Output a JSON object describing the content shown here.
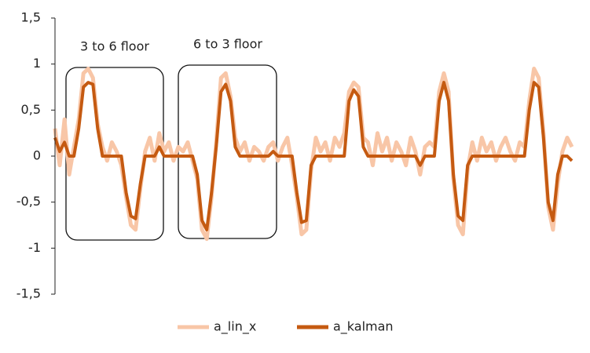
{
  "chart_data": {
    "type": "line",
    "annotations": [
      "3 to 6 floor",
      "6 to 3 floor"
    ],
    "ylim": [
      -1.5,
      1.5
    ],
    "yticks": [
      {
        "value": -1.5,
        "label": "-1,5"
      },
      -1,
      {
        "value": -0.5,
        "label": "-0,5"
      },
      0,
      {
        "value": 0.5,
        "label": "0,5"
      },
      1,
      {
        "value": 1.5,
        "label": "1,5"
      }
    ],
    "legend": "bottom",
    "series": [
      {
        "name": "a_lin_x",
        "color": "#f8c6a7",
        "values": [
          0.3,
          -0.1,
          0.4,
          -0.2,
          0.1,
          0.4,
          0.9,
          0.95,
          0.85,
          0.35,
          0.1,
          -0.05,
          0.15,
          0.05,
          -0.1,
          -0.45,
          -0.75,
          -0.8,
          -0.35,
          0.05,
          0.2,
          -0.05,
          0.25,
          0.05,
          0.15,
          -0.05,
          0.1,
          0.05,
          0.15,
          -0.05,
          -0.25,
          -0.8,
          -0.9,
          -0.45,
          0.15,
          0.85,
          0.9,
          0.65,
          0.2,
          0.05,
          0.15,
          -0.05,
          0.1,
          0.05,
          -0.05,
          0.1,
          0.15,
          -0.05,
          0.1,
          0.2,
          -0.1,
          -0.45,
          -0.85,
          -0.8,
          -0.15,
          0.2,
          0.05,
          0.15,
          -0.05,
          0.2,
          0.1,
          0.25,
          0.7,
          0.8,
          0.75,
          0.2,
          0.15,
          -0.1,
          0.25,
          0.05,
          0.2,
          -0.05,
          0.15,
          0.05,
          -0.1,
          0.2,
          0.05,
          -0.2,
          0.1,
          0.15,
          0.1,
          0.7,
          0.9,
          0.7,
          -0.25,
          -0.75,
          -0.85,
          -0.15,
          0.15,
          -0.05,
          0.2,
          0.05,
          0.15,
          -0.05,
          0.1,
          0.2,
          0.05,
          -0.05,
          0.15,
          0.1,
          0.6,
          0.95,
          0.85,
          0.25,
          -0.55,
          -0.8,
          -0.3,
          0.05,
          0.2,
          0.1
        ]
      },
      {
        "name": "a_kalman",
        "color": "#c55a11",
        "values": [
          0.2,
          0.05,
          0.15,
          0,
          0,
          0.3,
          0.75,
          0.8,
          0.78,
          0.3,
          0,
          0,
          0,
          0,
          0,
          -0.4,
          -0.65,
          -0.68,
          -0.3,
          0,
          0,
          0,
          0.1,
          0,
          0,
          0,
          0,
          0,
          0,
          0,
          -0.2,
          -0.7,
          -0.8,
          -0.4,
          0.1,
          0.7,
          0.78,
          0.6,
          0.1,
          0,
          0,
          0,
          0,
          0,
          0,
          0,
          0.05,
          0,
          0,
          0,
          0,
          -0.4,
          -0.72,
          -0.7,
          -0.1,
          0,
          0,
          0,
          0,
          0,
          0,
          0,
          0.6,
          0.72,
          0.65,
          0.1,
          0,
          0,
          0,
          0,
          0,
          0,
          0,
          0,
          0,
          0,
          0,
          -0.1,
          0,
          0,
          0,
          0.6,
          0.8,
          0.6,
          -0.2,
          -0.65,
          -0.7,
          -0.1,
          0,
          0,
          0,
          0,
          0,
          0,
          0,
          0,
          0,
          0,
          0,
          0,
          0.5,
          0.8,
          0.75,
          0.2,
          -0.5,
          -0.7,
          -0.2,
          0,
          0,
          -0.05
        ]
      }
    ]
  }
}
